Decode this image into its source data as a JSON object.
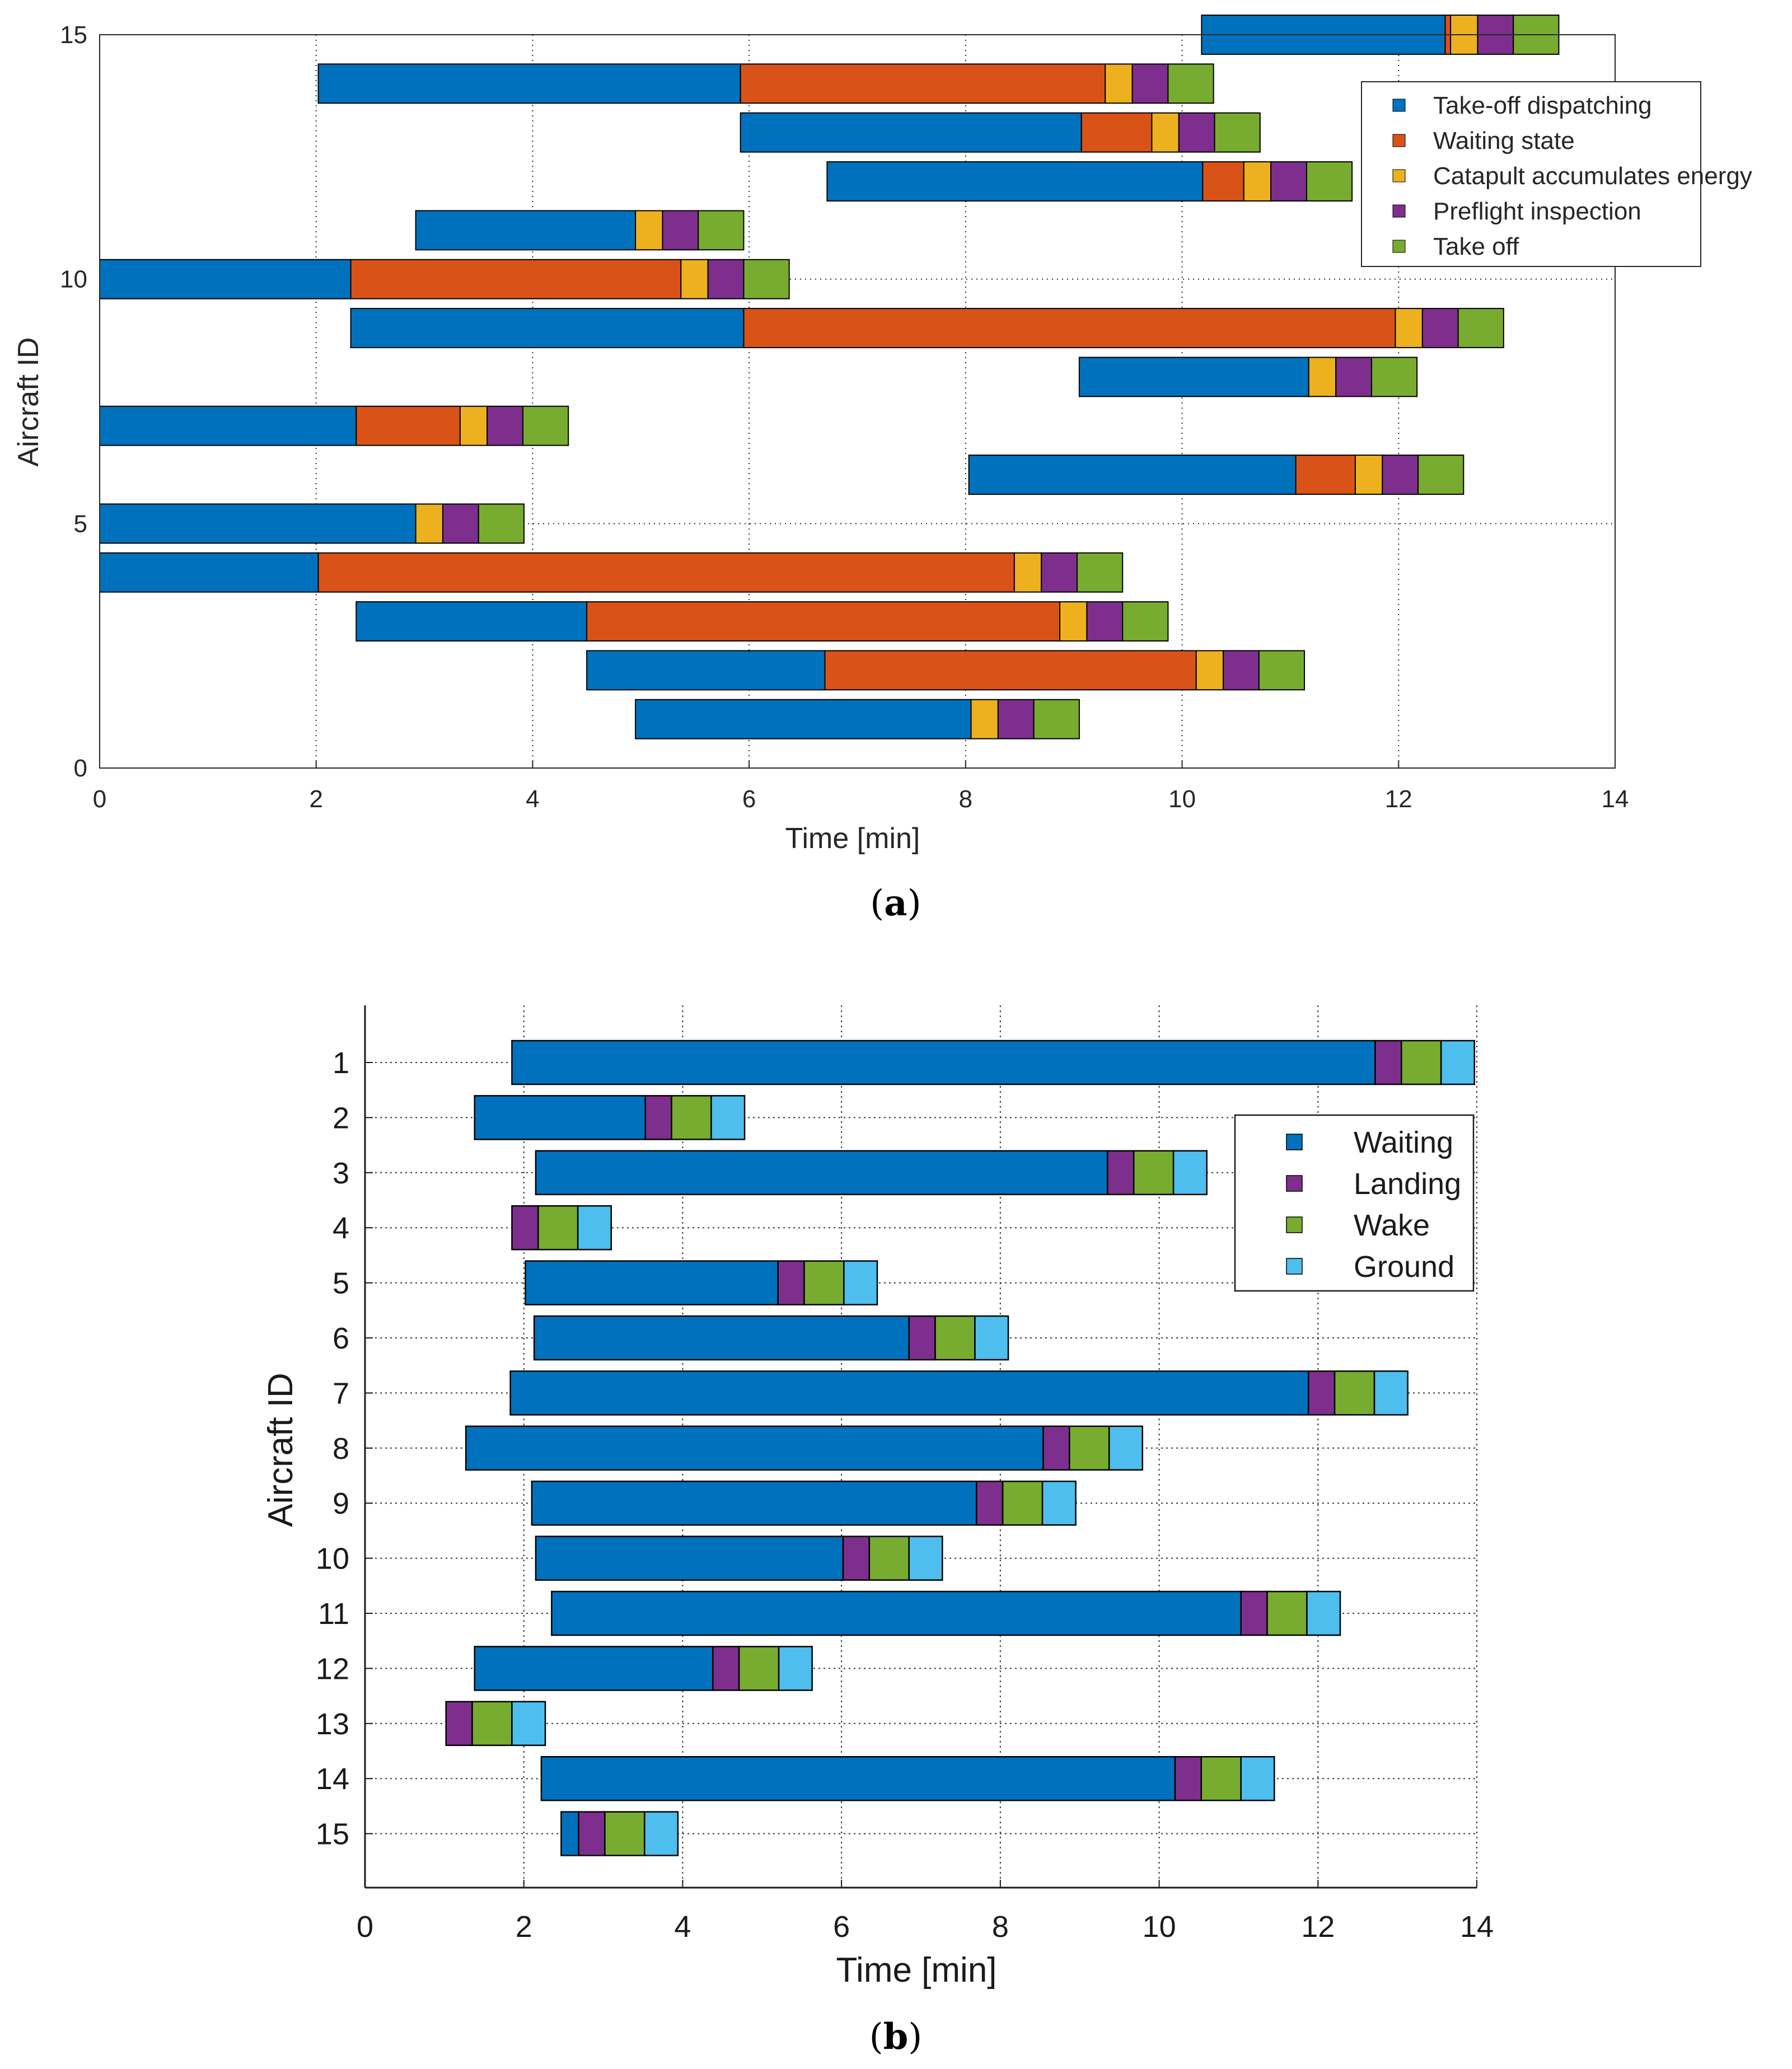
{
  "chart_data": [
    {
      "type": "gantt",
      "panel": "a",
      "caption_letter": "a",
      "xlabel": "Time [min]",
      "ylabel": "Aircraft ID",
      "xlim": [
        0,
        14
      ],
      "ylim": [
        0,
        15
      ],
      "xticks": [
        "0",
        "2",
        "4",
        "6",
        "8",
        "10",
        "12",
        "14"
      ],
      "yticks": [
        "0",
        "5",
        "10",
        "15"
      ],
      "ytick_values": [
        0,
        5,
        10,
        15
      ],
      "grid": true,
      "legend_position": "top-right",
      "phases": [
        {
          "name": "Take-off dispatching",
          "color": "#0072BD"
        },
        {
          "name": "Waiting state",
          "color": "#D95319"
        },
        {
          "name": "Catapult accumulates energy",
          "color": "#EDB120"
        },
        {
          "name": "Preflight inspection",
          "color": "#7E2F8E"
        },
        {
          "name": "Take off",
          "color": "#77AC30"
        }
      ],
      "rows": [
        {
          "id": 1,
          "start": 4.95,
          "durations": [
            3.1,
            0,
            0.25,
            0.33,
            0.42
          ]
        },
        {
          "id": 2,
          "start": 4.5,
          "durations": [
            2.2,
            3.43,
            0.25,
            0.33,
            0.42
          ]
        },
        {
          "id": 3,
          "start": 2.37,
          "durations": [
            2.13,
            4.37,
            0.25,
            0.33,
            0.42
          ]
        },
        {
          "id": 4,
          "start": 0,
          "durations": [
            2.02,
            6.43,
            0.25,
            0.33,
            0.42
          ]
        },
        {
          "id": 5,
          "start": 0,
          "durations": [
            2.92,
            0,
            0.25,
            0.33,
            0.42
          ]
        },
        {
          "id": 6,
          "start": 8.03,
          "durations": [
            3.02,
            0.55,
            0.25,
            0.33,
            0.42
          ]
        },
        {
          "id": 7,
          "start": 0,
          "durations": [
            2.37,
            0.96,
            0.25,
            0.33,
            0.42
          ]
        },
        {
          "id": 8,
          "start": 9.05,
          "durations": [
            2.12,
            0,
            0.25,
            0.33,
            0.42
          ]
        },
        {
          "id": 9,
          "start": 2.32,
          "durations": [
            3.63,
            6.02,
            0.25,
            0.33,
            0.42
          ]
        },
        {
          "id": 10,
          "start": 0,
          "durations": [
            2.32,
            3.05,
            0.25,
            0.33,
            0.42
          ]
        },
        {
          "id": 11,
          "start": 2.92,
          "durations": [
            2.03,
            0,
            0.25,
            0.33,
            0.42
          ]
        },
        {
          "id": 12,
          "start": 6.72,
          "durations": [
            3.47,
            0.38,
            0.25,
            0.33,
            0.42
          ]
        },
        {
          "id": 13,
          "start": 5.92,
          "durations": [
            3.15,
            0.65,
            0.25,
            0.33,
            0.42
          ]
        },
        {
          "id": 14,
          "start": 2.02,
          "durations": [
            3.9,
            3.37,
            0.25,
            0.33,
            0.42
          ]
        },
        {
          "id": 15,
          "start": 10.18,
          "durations": [
            2.25,
            0.05,
            0.25,
            0.33,
            0.42
          ]
        }
      ]
    },
    {
      "type": "gantt",
      "panel": "b",
      "caption_letter": "b",
      "xlabel": "Time [min]",
      "ylabel": "Aircraft ID",
      "xlim": [
        0,
        14
      ],
      "xticks": [
        "0",
        "2",
        "4",
        "6",
        "8",
        "10",
        "12",
        "14"
      ],
      "yticks": [
        "1",
        "2",
        "3",
        "4",
        "5",
        "6",
        "7",
        "8",
        "9",
        "10",
        "11",
        "12",
        "13",
        "14",
        "15"
      ],
      "grid": true,
      "legend_position": "top-right",
      "phases": [
        {
          "name": "Waiting",
          "color": "#0072BD"
        },
        {
          "name": "Landing",
          "color": "#7E2F8E"
        },
        {
          "name": "Wake",
          "color": "#77AC30"
        },
        {
          "name": "Ground",
          "color": "#4DBEEE"
        }
      ],
      "rows": [
        {
          "id": 1,
          "start": 1.85,
          "durations": [
            10.87,
            0.33,
            0.5,
            0.42
          ]
        },
        {
          "id": 2,
          "start": 1.38,
          "durations": [
            2.15,
            0.33,
            0.5,
            0.42
          ]
        },
        {
          "id": 3,
          "start": 2.15,
          "durations": [
            7.2,
            0.33,
            0.5,
            0.42
          ]
        },
        {
          "id": 4,
          "start": 1.85,
          "durations": [
            0,
            0.33,
            0.5,
            0.42
          ]
        },
        {
          "id": 5,
          "start": 2.02,
          "durations": [
            3.18,
            0.33,
            0.5,
            0.42
          ]
        },
        {
          "id": 6,
          "start": 2.13,
          "durations": [
            4.72,
            0.33,
            0.5,
            0.42
          ]
        },
        {
          "id": 7,
          "start": 1.83,
          "durations": [
            10.05,
            0.33,
            0.5,
            0.42
          ]
        },
        {
          "id": 8,
          "start": 1.27,
          "durations": [
            7.27,
            0.33,
            0.5,
            0.42
          ]
        },
        {
          "id": 9,
          "start": 2.1,
          "durations": [
            5.6,
            0.33,
            0.5,
            0.42
          ]
        },
        {
          "id": 10,
          "start": 2.15,
          "durations": [
            3.87,
            0.33,
            0.5,
            0.42
          ]
        },
        {
          "id": 11,
          "start": 2.35,
          "durations": [
            8.68,
            0.33,
            0.5,
            0.42
          ]
        },
        {
          "id": 12,
          "start": 1.38,
          "durations": [
            3.0,
            0.33,
            0.5,
            0.42
          ]
        },
        {
          "id": 13,
          "start": 1.02,
          "durations": [
            0,
            0.33,
            0.5,
            0.42
          ]
        },
        {
          "id": 14,
          "start": 2.22,
          "durations": [
            7.98,
            0.33,
            0.5,
            0.42
          ]
        },
        {
          "id": 15,
          "start": 2.47,
          "durations": [
            0.22,
            0.33,
            0.5,
            0.42
          ]
        }
      ]
    }
  ]
}
